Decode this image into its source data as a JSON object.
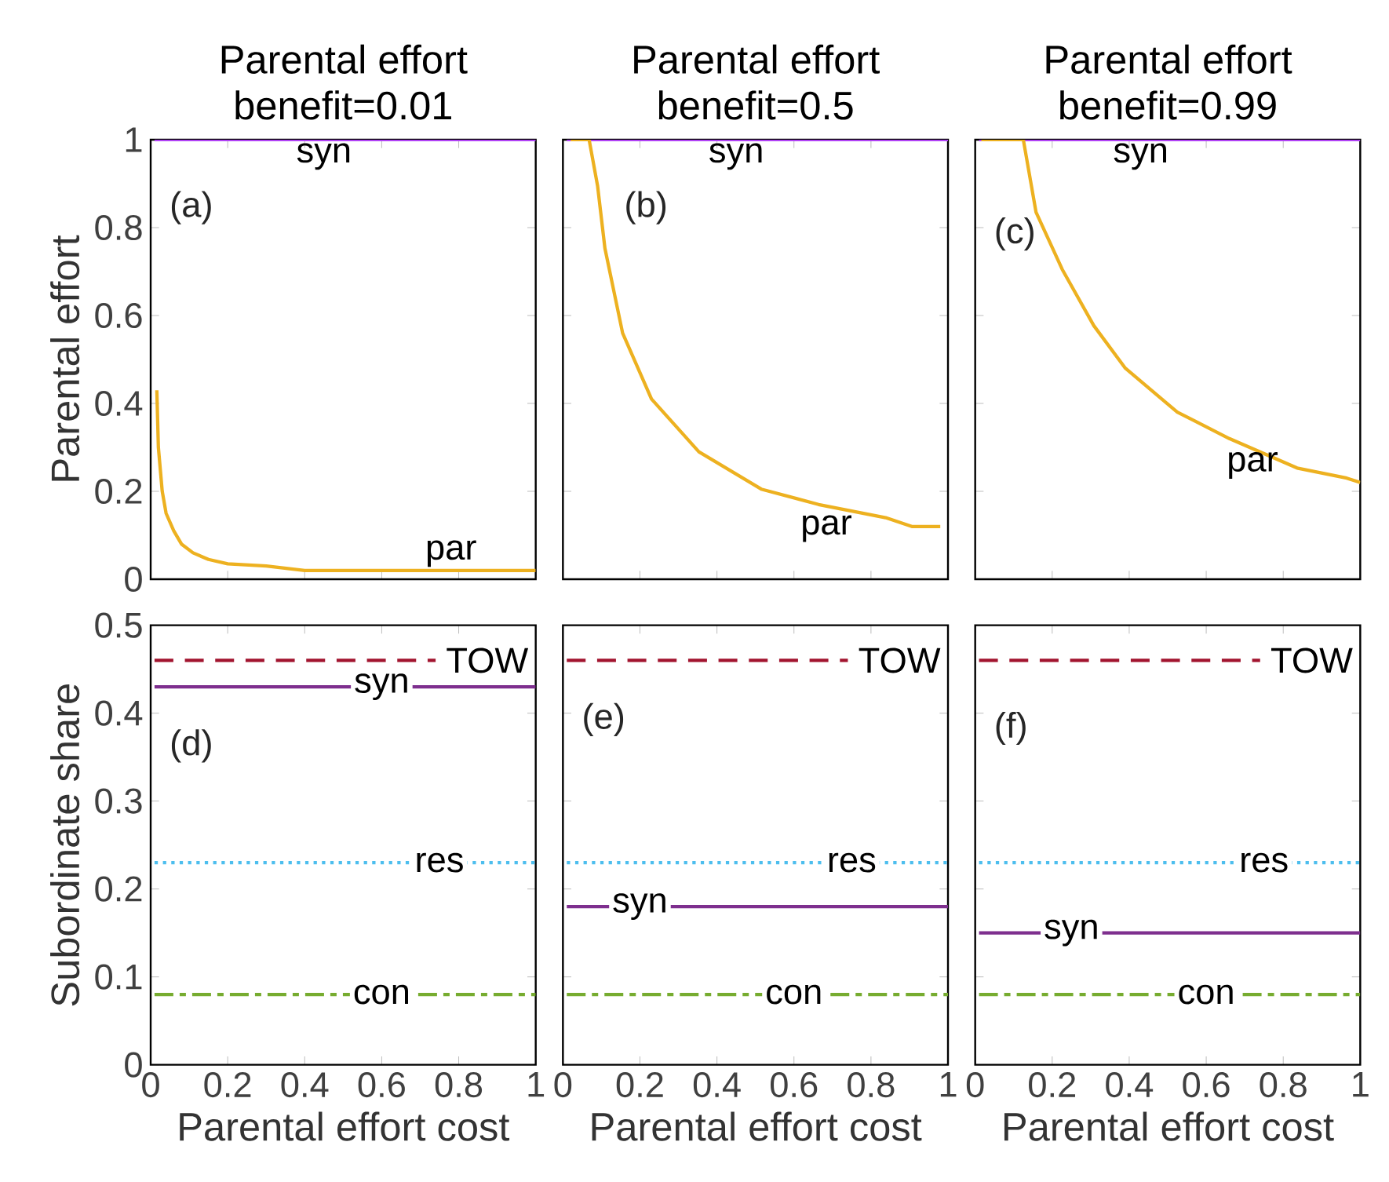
{
  "chart_data": [
    {
      "type": "line",
      "title": "Parental effort",
      "subtitle": "benefit=0.01",
      "ylabel": "Parental effort",
      "xlim": [
        0,
        1
      ],
      "ylim": [
        0,
        1
      ],
      "xticks": [
        0,
        0.2,
        0.4,
        0.6,
        0.8,
        1
      ],
      "yticks": [
        0,
        0.2,
        0.4,
        0.6,
        0.8,
        1
      ],
      "tick_labels": "y",
      "annotations": [
        "(a)"
      ],
      "series": [
        {
          "name": "syn",
          "color": "#b142f5",
          "line_style": "solid",
          "x": [
            0.01,
            1
          ],
          "values": [
            1,
            1
          ]
        },
        {
          "name": "par",
          "color": "#edb120",
          "line_style": "solid",
          "x": [
            0.016,
            0.02,
            0.03,
            0.04,
            0.06,
            0.08,
            0.11,
            0.15,
            0.2,
            0.3,
            0.4,
            0.6,
            0.8,
            1
          ],
          "values": [
            0.43,
            0.3,
            0.2,
            0.15,
            0.11,
            0.08,
            0.06,
            0.045,
            0.035,
            0.03,
            0.02,
            0.02,
            0.02,
            0.02
          ]
        }
      ]
    },
    {
      "type": "line",
      "title": "Parental effort",
      "subtitle": "benefit=0.5",
      "xlim": [
        0,
        1
      ],
      "ylim": [
        0,
        1
      ],
      "xticks": [
        0,
        0.2,
        0.4,
        0.6,
        0.8,
        1
      ],
      "yticks": [
        0,
        0.2,
        0.4,
        0.6,
        0.8,
        1
      ],
      "tick_labels": false,
      "annotations": [
        "(b)"
      ],
      "series": [
        {
          "name": "syn",
          "color": "#b142f5",
          "line_style": "solid",
          "x": [
            0.01,
            1
          ],
          "values": [
            1,
            1
          ]
        },
        {
          "name": "par",
          "color": "#edb120",
          "line_style": "solid",
          "x": [
            0.02,
            0.068,
            0.09,
            0.109,
            0.155,
            0.23,
            0.353,
            0.515,
            0.664,
            0.838,
            0.906,
            0.98
          ],
          "values": [
            1,
            1,
            0.895,
            0.753,
            0.56,
            0.41,
            0.29,
            0.205,
            0.17,
            0.14,
            0.12,
            0.12
          ]
        }
      ]
    },
    {
      "type": "line",
      "title": "Parental effort",
      "subtitle": "benefit=0.99",
      "xlim": [
        0,
        1
      ],
      "ylim": [
        0,
        1
      ],
      "xticks": [
        0,
        0.2,
        0.4,
        0.6,
        0.8,
        1
      ],
      "yticks": [
        0,
        0.2,
        0.4,
        0.6,
        0.8,
        1
      ],
      "tick_labels": false,
      "annotations": [
        "(c)"
      ],
      "series": [
        {
          "name": "syn",
          "color": "#b142f5",
          "line_style": "solid",
          "x": [
            0.01,
            1
          ],
          "values": [
            1,
            1
          ]
        },
        {
          "name": "par",
          "color": "#edb120",
          "line_style": "solid",
          "x": [
            0.016,
            0.125,
            0.158,
            0.226,
            0.308,
            0.39,
            0.525,
            0.66,
            0.836,
            0.965,
            1
          ],
          "values": [
            1,
            1,
            0.835,
            0.705,
            0.577,
            0.48,
            0.38,
            0.32,
            0.253,
            0.23,
            0.22
          ]
        }
      ]
    },
    {
      "type": "line",
      "xlabel": "Parental effort cost",
      "ylabel": "Subordinate share",
      "xlim": [
        0,
        1
      ],
      "ylim": [
        0,
        0.5
      ],
      "xticks": [
        0,
        0.2,
        0.4,
        0.6,
        0.8,
        1
      ],
      "yticks": [
        0,
        0.1,
        0.2,
        0.3,
        0.4,
        0.5
      ],
      "annotations": [
        "(d)"
      ],
      "series": [
        {
          "name": "TOW",
          "color": "#a2142f",
          "line_style": "dashed",
          "x": [
            0.01,
            0.74
          ],
          "values": [
            0.46,
            0.46
          ]
        },
        {
          "name": "syn",
          "color": "#7e2f8e",
          "line_style": "solid",
          "x": [
            0.01,
            1
          ],
          "values": [
            0.43,
            0.43
          ]
        },
        {
          "name": "res",
          "color": "#4dbeee",
          "line_style": "dotted",
          "x": [
            0.01,
            1
          ],
          "values": [
            0.23,
            0.23
          ]
        },
        {
          "name": "con",
          "color": "#77ac30",
          "line_style": "dashdot",
          "x": [
            0.01,
            1
          ],
          "values": [
            0.08,
            0.08
          ]
        }
      ]
    },
    {
      "type": "line",
      "xlabel": "Parental effort cost",
      "xlim": [
        0,
        1
      ],
      "ylim": [
        0,
        0.5
      ],
      "xticks": [
        0,
        0.2,
        0.4,
        0.6,
        0.8,
        1
      ],
      "yticks": [
        0,
        0.1,
        0.2,
        0.3,
        0.4,
        0.5
      ],
      "tick_labels": "x",
      "annotations": [
        "(e)"
      ],
      "series": [
        {
          "name": "TOW",
          "color": "#a2142f",
          "line_style": "dashed",
          "x": [
            0.01,
            0.74
          ],
          "values": [
            0.46,
            0.46
          ]
        },
        {
          "name": "syn",
          "color": "#7e2f8e",
          "line_style": "solid",
          "x": [
            0.01,
            1
          ],
          "values": [
            0.18,
            0.18
          ]
        },
        {
          "name": "res",
          "color": "#4dbeee",
          "line_style": "dotted",
          "x": [
            0.01,
            1
          ],
          "values": [
            0.23,
            0.23
          ]
        },
        {
          "name": "con",
          "color": "#77ac30",
          "line_style": "dashdot",
          "x": [
            0.01,
            1
          ],
          "values": [
            0.08,
            0.08
          ]
        }
      ]
    },
    {
      "type": "line",
      "xlabel": "Parental effort cost",
      "xlim": [
        0,
        1
      ],
      "ylim": [
        0,
        0.5
      ],
      "xticks": [
        0,
        0.2,
        0.4,
        0.6,
        0.8,
        1
      ],
      "yticks": [
        0,
        0.1,
        0.2,
        0.3,
        0.4,
        0.5
      ],
      "tick_labels": "x",
      "annotations": [
        "(f)"
      ],
      "series": [
        {
          "name": "TOW",
          "color": "#a2142f",
          "line_style": "dashed",
          "x": [
            0.01,
            0.74
          ],
          "values": [
            0.46,
            0.46
          ]
        },
        {
          "name": "syn",
          "color": "#7e2f8e",
          "line_style": "solid",
          "x": [
            0.01,
            1
          ],
          "values": [
            0.15,
            0.15
          ]
        },
        {
          "name": "res",
          "color": "#4dbeee",
          "line_style": "dotted",
          "x": [
            0.01,
            1
          ],
          "values": [
            0.23,
            0.23
          ]
        },
        {
          "name": "con",
          "color": "#77ac30",
          "line_style": "dashdot",
          "x": [
            0.01,
            1
          ],
          "values": [
            0.08,
            0.08
          ]
        }
      ]
    }
  ]
}
